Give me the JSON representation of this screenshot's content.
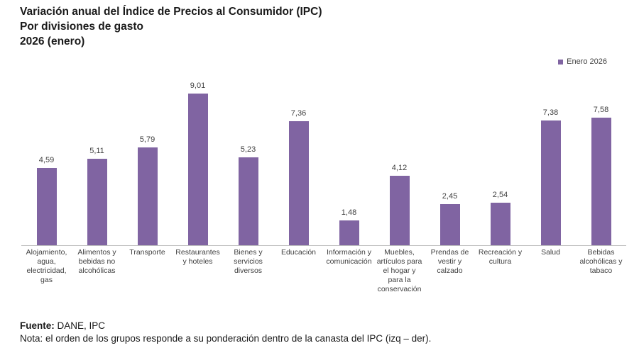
{
  "title": {
    "line1": "Variación anual del Índice de Precios al Consumidor (IPC)",
    "line2": "Por divisiones de gasto",
    "line3": "2026 (enero)"
  },
  "legend": {
    "label": "Enero 2026",
    "marker_color": "#8064A2"
  },
  "chart_data": {
    "type": "bar",
    "title": "Variación anual del Índice de Precios al Consumidor (IPC) - Por divisiones de gasto - 2026 (enero)",
    "categories": [
      "Alojamiento, agua, electricidad, gas",
      "Alimentos y bebidas no alcohólicas",
      "Transporte",
      "Restaurantes y hoteles",
      "Bienes y servicios diversos",
      "Educación",
      "Información y comunicación",
      "Muebles, artículos para el hogar y para la conservación",
      "Prendas de vestir y calzado",
      "Recreación y cultura",
      "Salud",
      "Bebidas alcohólicas y tabaco"
    ],
    "series": [
      {
        "name": "Enero 2026",
        "values": [
          4.59,
          5.11,
          5.79,
          9.01,
          5.23,
          7.36,
          1.48,
          4.12,
          2.45,
          2.54,
          7.38,
          7.58
        ]
      }
    ],
    "value_labels": [
      "4,59",
      "5,11",
      "5,79",
      "9,01",
      "5,23",
      "7,36",
      "1,48",
      "4,12",
      "2,45",
      "2,54",
      "7,38",
      "7,58"
    ],
    "bar_color": "#8064A2",
    "axis_color": "#bfbfbf",
    "xlabel": "",
    "ylabel": "",
    "ylim": [
      0,
      10
    ],
    "grid": false,
    "legend_position": "top-right",
    "value_label_decimal_separator": ","
  },
  "footer": {
    "source_label": "Fuente:",
    "source_value": "DANE, IPC",
    "note": "Nota: el orden de los grupos responde a su ponderación dentro de la canasta del IPC (izq – der)."
  }
}
